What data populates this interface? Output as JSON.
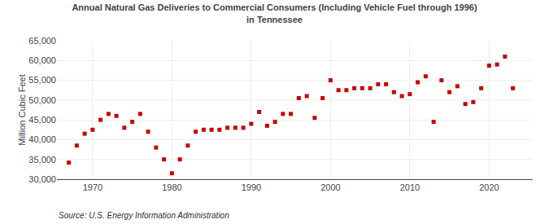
{
  "chart_data": {
    "type": "scatter",
    "title": "Annual Natural Gas Deliveries to Commercial Consumers (Including Vehicle Fuel through 1996)",
    "subtitle": "in Tennessee",
    "y_label": "Million Cubic Feet",
    "annotations": [
      "Source: U.S. Energy Information Administration"
    ],
    "color": "#cc0000",
    "marker": "square",
    "grid": true,
    "x": [
      1967,
      1968,
      1969,
      1970,
      1971,
      1972,
      1973,
      1974,
      1975,
      1976,
      1977,
      1978,
      1979,
      1980,
      1981,
      1982,
      1983,
      1984,
      1985,
      1986,
      1987,
      1988,
      1989,
      1990,
      1991,
      1992,
      1993,
      1994,
      1995,
      1996,
      1997,
      1998,
      1999,
      2000,
      2001,
      2002,
      2003,
      2004,
      2005,
      2006,
      2007,
      2008,
      2009,
      2010,
      2011,
      2012,
      2013,
      2014,
      2015,
      2016,
      2017,
      2018,
      2019,
      2020,
      2021,
      2022,
      2023
    ],
    "values": [
      34200,
      38500,
      41500,
      42500,
      45000,
      46500,
      46000,
      43000,
      44500,
      46500,
      42000,
      38000,
      35000,
      31500,
      35000,
      38500,
      42000,
      42500,
      42500,
      42500,
      43000,
      43000,
      43000,
      44000,
      47000,
      43500,
      44500,
      46500,
      46500,
      50500,
      51000,
      45500,
      50500,
      55000,
      52500,
      52500,
      53000,
      53000,
      53000,
      54000,
      54000,
      52000,
      51000,
      51500,
      54500,
      56000,
      44500,
      55000,
      52000,
      53500,
      49000,
      49500,
      53000,
      58700,
      59000,
      61000,
      53000
    ],
    "xlim": [
      1965.5,
      2025.5
    ],
    "xticks": [
      1970,
      1980,
      1990,
      2000,
      2010,
      2020
    ],
    "ylim": [
      30000,
      65000
    ],
    "yticks": [
      {
        "value": 30000,
        "label": "30,000"
      },
      {
        "value": 35000,
        "label": "35,000"
      },
      {
        "value": 40000,
        "label": "40,000"
      },
      {
        "value": 45000,
        "label": "45,000"
      },
      {
        "value": 50000,
        "label": "50,000"
      },
      {
        "value": 55000,
        "label": "55,000"
      },
      {
        "value": 60000,
        "label": "60,000"
      },
      {
        "value": 65000,
        "label": "65,000"
      }
    ]
  }
}
